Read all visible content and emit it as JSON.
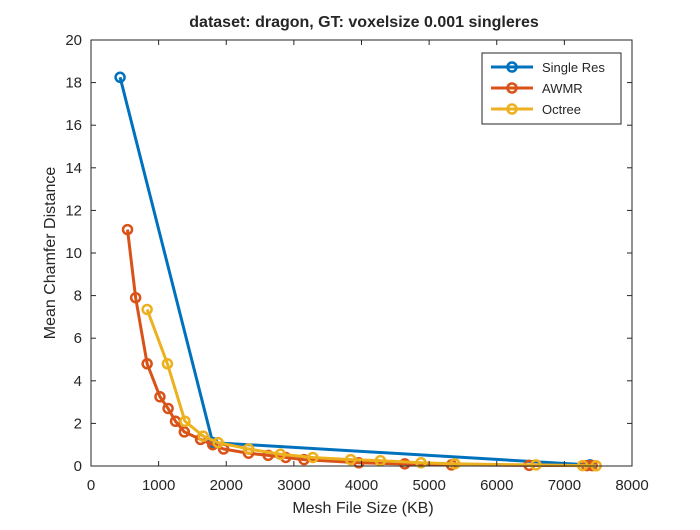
{
  "chart_data": {
    "type": "line",
    "title": "dataset: dragon, GT: voxelsize 0.001 singleres",
    "xlabel": "Mesh File Size (KB)",
    "ylabel": "Mean Chamfer Distance",
    "xlim": [
      0,
      8000
    ],
    "ylim": [
      0,
      20
    ],
    "xticks": [
      0,
      1000,
      2000,
      3000,
      4000,
      5000,
      6000,
      7000,
      8000
    ],
    "yticks": [
      0,
      2,
      4,
      6,
      8,
      10,
      12,
      14,
      16,
      18,
      20
    ],
    "legend_position": "top-right",
    "grid": false,
    "series": [
      {
        "name": "Single Res",
        "color": "#0072BD",
        "x": [
          430,
          1800,
          7380
        ],
        "y": [
          18.25,
          1.1,
          0.05
        ]
      },
      {
        "name": "AWMR",
        "color": "#D95319",
        "x": [
          540,
          660,
          830,
          1020,
          1140,
          1250,
          1380,
          1620,
          1800,
          1960,
          2330,
          2620,
          2880,
          3150,
          3960,
          4640,
          5330,
          6480,
          7330,
          7410
        ],
        "y": [
          11.1,
          7.9,
          4.8,
          3.25,
          2.7,
          2.1,
          1.6,
          1.25,
          1.0,
          0.8,
          0.6,
          0.5,
          0.4,
          0.3,
          0.15,
          0.1,
          0.05,
          0.03,
          0.02,
          0.02
        ]
      },
      {
        "name": "Octree",
        "color": "#EDB120",
        "x": [
          830,
          1130,
          1390,
          1660,
          1880,
          2330,
          2800,
          3280,
          3840,
          4280,
          4880,
          5380,
          6580,
          7270,
          7470
        ],
        "y": [
          7.35,
          4.8,
          2.1,
          1.4,
          1.1,
          0.8,
          0.55,
          0.4,
          0.3,
          0.25,
          0.15,
          0.1,
          0.05,
          0.02,
          0.01
        ]
      }
    ]
  }
}
